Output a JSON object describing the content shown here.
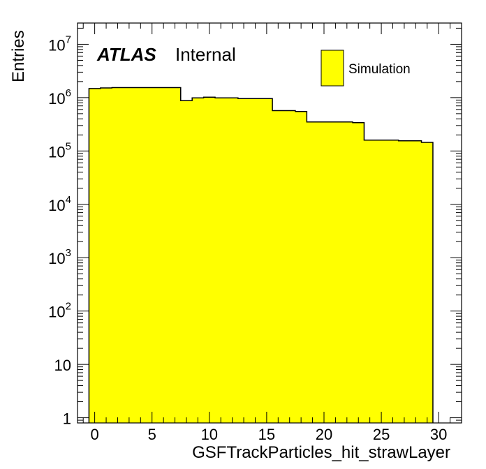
{
  "chart_data": {
    "type": "bar",
    "xlabel": "GSFTrackParticles_hit_strawLayer",
    "ylabel": "Entries",
    "yscale": "log",
    "xlim": [
      -1.5,
      32
    ],
    "ylim": [
      0.8,
      25000000
    ],
    "grid": false,
    "legend_position": "top-right",
    "x_ticks": [
      {
        "value": 0,
        "label": "0"
      },
      {
        "value": 5,
        "label": "5"
      },
      {
        "value": 10,
        "label": "10"
      },
      {
        "value": 15,
        "label": "15"
      },
      {
        "value": 20,
        "label": "20"
      },
      {
        "value": 25,
        "label": "25"
      },
      {
        "value": 30,
        "label": "30"
      }
    ],
    "y_ticks": [
      {
        "value": 1,
        "base": "1",
        "exp": ""
      },
      {
        "value": 10,
        "base": "10",
        "exp": ""
      },
      {
        "value": 100,
        "base": "10",
        "exp": "2"
      },
      {
        "value": 1000,
        "base": "10",
        "exp": "3"
      },
      {
        "value": 10000,
        "base": "10",
        "exp": "4"
      },
      {
        "value": 100000,
        "base": "10",
        "exp": "5"
      },
      {
        "value": 1000000,
        "base": "10",
        "exp": "6"
      },
      {
        "value": 10000000,
        "base": "10",
        "exp": "7"
      }
    ],
    "bin_edges": [
      -0.5,
      0.5,
      1.5,
      2.5,
      3.5,
      4.5,
      5.5,
      6.5,
      7.5,
      8.5,
      9.5,
      10.5,
      11.5,
      12.5,
      13.5,
      14.5,
      15.5,
      16.5,
      17.5,
      18.5,
      19.5,
      20.5,
      21.5,
      22.5,
      23.5,
      24.5,
      25.5,
      26.5,
      27.5,
      28.5,
      29.5
    ],
    "series": [
      {
        "name": "Simulation",
        "color": "#ffff00",
        "values": [
          1480000,
          1520000,
          1540000,
          1540000,
          1540000,
          1540000,
          1540000,
          1540000,
          880000,
          990000,
          1020000,
          990000,
          990000,
          960000,
          960000,
          960000,
          570000,
          570000,
          550000,
          350000,
          350000,
          350000,
          350000,
          340000,
          160000,
          160000,
          160000,
          155000,
          155000,
          145000
        ]
      }
    ],
    "annotations": {
      "atlas": "ATLAS",
      "internal": "Internal"
    }
  }
}
